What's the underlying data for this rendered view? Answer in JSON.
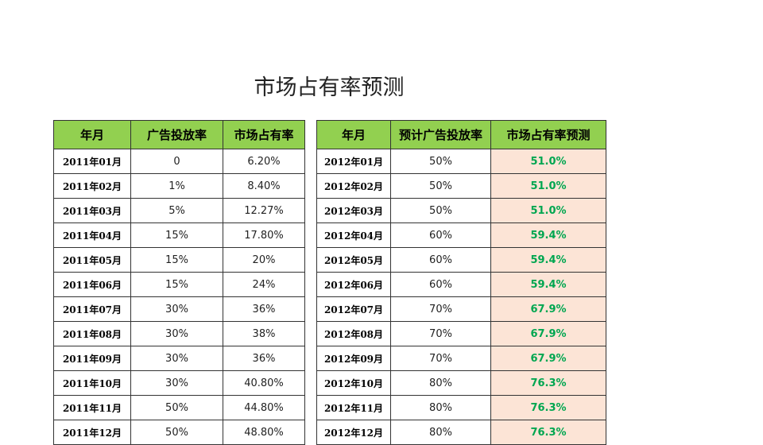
{
  "title": "市场占有率预测",
  "tables": [
    {
      "headers": [
        "年月",
        "广告投放率",
        "市场占有率"
      ],
      "rows": [
        [
          "2011年01月",
          "0",
          "6.20%"
        ],
        [
          "2011年02月",
          "1%",
          "8.40%"
        ],
        [
          "2011年03月",
          "5%",
          "12.27%"
        ],
        [
          "2011年04月",
          "15%",
          "17.80%"
        ],
        [
          "2011年05月",
          "15%",
          "20%"
        ],
        [
          "2011年06月",
          "15%",
          "24%"
        ],
        [
          "2011年07月",
          "30%",
          "36%"
        ],
        [
          "2011年08月",
          "30%",
          "38%"
        ],
        [
          "2011年09月",
          "30%",
          "36%"
        ],
        [
          "2011年10月",
          "30%",
          "40.80%"
        ],
        [
          "2011年11月",
          "50%",
          "44.80%"
        ],
        [
          "2011年12月",
          "50%",
          "48.80%"
        ]
      ]
    },
    {
      "headers": [
        "年月",
        "预计广告投放率",
        "市场占有率预测"
      ],
      "rows": [
        [
          "2012年01月",
          "50%",
          "51.0%"
        ],
        [
          "2012年02月",
          "50%",
          "51.0%"
        ],
        [
          "2012年03月",
          "50%",
          "51.0%"
        ],
        [
          "2012年04月",
          "60%",
          "59.4%"
        ],
        [
          "2012年05月",
          "60%",
          "59.4%"
        ],
        [
          "2012年06月",
          "60%",
          "59.4%"
        ],
        [
          "2012年07月",
          "70%",
          "67.9%"
        ],
        [
          "2012年08月",
          "70%",
          "67.9%"
        ],
        [
          "2012年09月",
          "70%",
          "67.9%"
        ],
        [
          "2012年10月",
          "80%",
          "76.3%"
        ],
        [
          "2012年11月",
          "80%",
          "76.3%"
        ],
        [
          "2012年12月",
          "80%",
          "76.3%"
        ]
      ]
    }
  ]
}
